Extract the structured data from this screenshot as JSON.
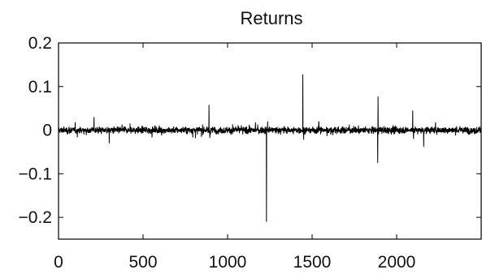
{
  "chart_data": {
    "type": "line",
    "title": "Returns",
    "xlabel": "",
    "ylabel": "",
    "xlim": [
      0,
      2500
    ],
    "ylim": [
      -0.25,
      0.2
    ],
    "xticks": [
      0,
      500,
      1000,
      1500,
      2000
    ],
    "xtick_labels": [
      "0",
      "500",
      "1000",
      "1500",
      "2000"
    ],
    "yticks": [
      0.2,
      0.1,
      0,
      -0.1,
      -0.2
    ],
    "ytick_labels": [
      "0.2",
      "0.1",
      "0",
      "−0.1",
      "−0.2"
    ],
    "grid": false,
    "legend": "none",
    "series": [
      {
        "values_description_note": "",
        "noise_level": 0.007,
        "spikes": [
          {
            "x": 210,
            "y": 0.03
          },
          {
            "x": 300,
            "y": -0.03
          },
          {
            "x": 890,
            "y": 0.058
          },
          {
            "x": 895,
            "y": -0.018
          },
          {
            "x": 1165,
            "y": 0.018
          },
          {
            "x": 1230,
            "y": -0.21
          },
          {
            "x": 1237,
            "y": 0.02
          },
          {
            "x": 1445,
            "y": 0.128
          },
          {
            "x": 1450,
            "y": -0.022
          },
          {
            "x": 1540,
            "y": 0.02
          },
          {
            "x": 1890,
            "y": 0.077
          },
          {
            "x": 1888,
            "y": -0.075
          },
          {
            "x": 2095,
            "y": 0.045
          },
          {
            "x": 2100,
            "y": -0.02
          },
          {
            "x": 2160,
            "y": -0.038
          },
          {
            "x": 2230,
            "y": 0.018
          }
        ],
        "n_points": 2500
      }
    ],
    "colors": {
      "line": "#000000",
      "axes": "#000000"
    }
  }
}
